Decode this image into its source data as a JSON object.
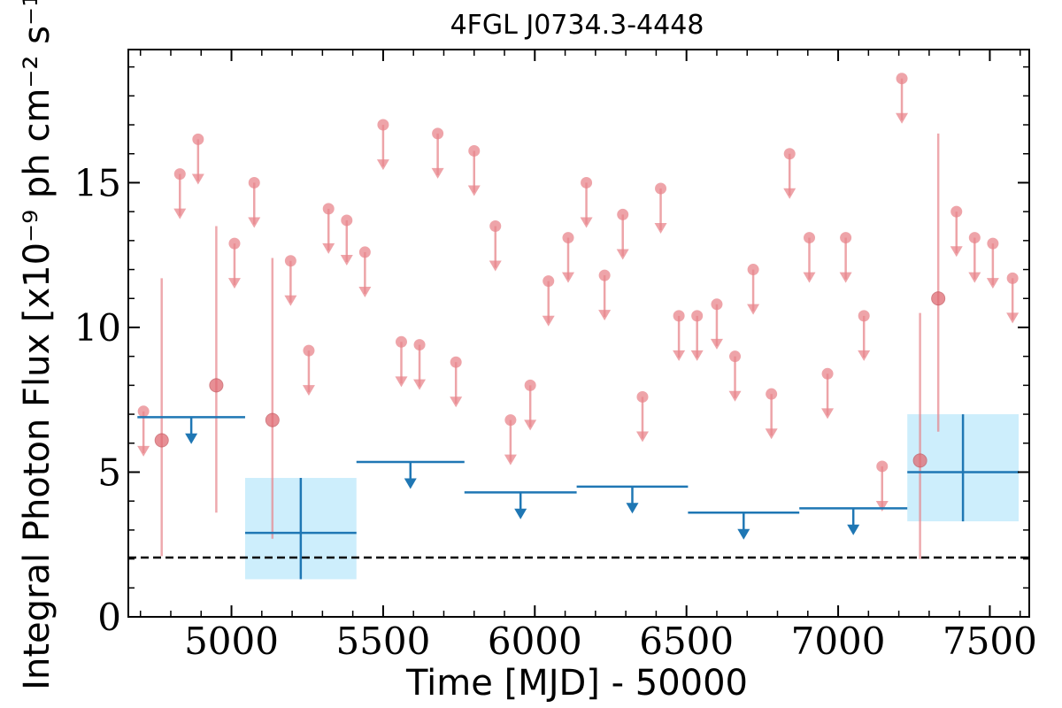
{
  "chart_data": {
    "type": "scatter",
    "title": "4FGL J0734.3-4448",
    "xlabel": "Time [MJD] - 50000",
    "ylabel": "Integral Photon Flux [x10⁻⁹ ph cm⁻² s⁻¹]",
    "xlim": [
      4660,
      7630
    ],
    "ylim": [
      0,
      19.6
    ],
    "x_ticks": [
      5000,
      5500,
      6000,
      6500,
      7000,
      7500
    ],
    "y_ticks": [
      0,
      5,
      10,
      15
    ],
    "grid": false,
    "reference_line": {
      "y": 2.05,
      "style": "dashed",
      "color": "#000000"
    },
    "colors": {
      "monthly": "#e8868c",
      "yearly": "#1f77b4",
      "yearly_band": "#cdeefc"
    },
    "series": [
      {
        "marker": "circle",
        "color": "#e8868c",
        "upper_limits": [
          {
            "x": 4710,
            "y": 7.1
          },
          {
            "x": 4830,
            "y": 15.3
          },
          {
            "x": 4890,
            "y": 16.5
          },
          {
            "x": 5010,
            "y": 12.9
          },
          {
            "x": 5075,
            "y": 15.0
          },
          {
            "x": 5195,
            "y": 12.3
          },
          {
            "x": 5255,
            "y": 9.2
          },
          {
            "x": 5320,
            "y": 14.1
          },
          {
            "x": 5380,
            "y": 13.7
          },
          {
            "x": 5440,
            "y": 12.6
          },
          {
            "x": 5500,
            "y": 17.0
          },
          {
            "x": 5560,
            "y": 9.5
          },
          {
            "x": 5620,
            "y": 9.4
          },
          {
            "x": 5680,
            "y": 16.7
          },
          {
            "x": 5740,
            "y": 8.8
          },
          {
            "x": 5800,
            "y": 16.1
          },
          {
            "x": 5870,
            "y": 13.5
          },
          {
            "x": 5920,
            "y": 6.8
          },
          {
            "x": 5985,
            "y": 8.0
          },
          {
            "x": 6045,
            "y": 11.6
          },
          {
            "x": 6110,
            "y": 13.1
          },
          {
            "x": 6170,
            "y": 15.0
          },
          {
            "x": 6230,
            "y": 11.8
          },
          {
            "x": 6290,
            "y": 13.9
          },
          {
            "x": 6355,
            "y": 7.6
          },
          {
            "x": 6415,
            "y": 14.8
          },
          {
            "x": 6475,
            "y": 10.4
          },
          {
            "x": 6535,
            "y": 10.4
          },
          {
            "x": 6600,
            "y": 10.8
          },
          {
            "x": 6660,
            "y": 9.0
          },
          {
            "x": 6720,
            "y": 12.0
          },
          {
            "x": 6780,
            "y": 7.7
          },
          {
            "x": 6840,
            "y": 16.0
          },
          {
            "x": 6905,
            "y": 13.1
          },
          {
            "x": 6965,
            "y": 8.4
          },
          {
            "x": 7025,
            "y": 13.1
          },
          {
            "x": 7085,
            "y": 10.4
          },
          {
            "x": 7145,
            "y": 5.2
          },
          {
            "x": 7210,
            "y": 18.6
          },
          {
            "x": 7390,
            "y": 14.0
          },
          {
            "x": 7450,
            "y": 13.1
          },
          {
            "x": 7510,
            "y": 12.9
          },
          {
            "x": 7575,
            "y": 11.7
          }
        ],
        "detections": [
          {
            "x": 4770,
            "y": 6.1,
            "ylo": 2.1,
            "yhi": 11.7
          },
          {
            "x": 4950,
            "y": 8.0,
            "ylo": 3.6,
            "yhi": 13.5
          },
          {
            "x": 5135,
            "y": 6.8,
            "ylo": 2.7,
            "yhi": 12.4
          },
          {
            "x": 7270,
            "y": 5.4,
            "ylo": 2.0,
            "yhi": 10.5
          },
          {
            "x": 7330,
            "y": 11.0,
            "ylo": 6.4,
            "yhi": 16.7
          }
        ]
      },
      {
        "marker": "line",
        "color": "#1f77b4",
        "upper_limits": [
          {
            "x_start": 4690,
            "x_end": 5045,
            "y": 6.9
          },
          {
            "x_start": 5412,
            "x_end": 5768,
            "y": 5.35
          },
          {
            "x_start": 5768,
            "x_end": 6138,
            "y": 4.3
          },
          {
            "x_start": 6138,
            "x_end": 6505,
            "y": 4.5
          },
          {
            "x_start": 6505,
            "x_end": 6872,
            "y": 3.6
          },
          {
            "x_start": 6872,
            "x_end": 7228,
            "y": 3.75
          }
        ],
        "detections": [
          {
            "x_start": 5045,
            "x_end": 5412,
            "y": 2.9,
            "ylo": 1.3,
            "yhi": 4.8,
            "band_lo": 1.3,
            "band_hi": 4.8
          },
          {
            "x_start": 7228,
            "x_end": 7595,
            "y": 5.0,
            "ylo": 3.3,
            "yhi": 7.0,
            "band_lo": 3.3,
            "band_hi": 7.0
          }
        ]
      }
    ]
  }
}
